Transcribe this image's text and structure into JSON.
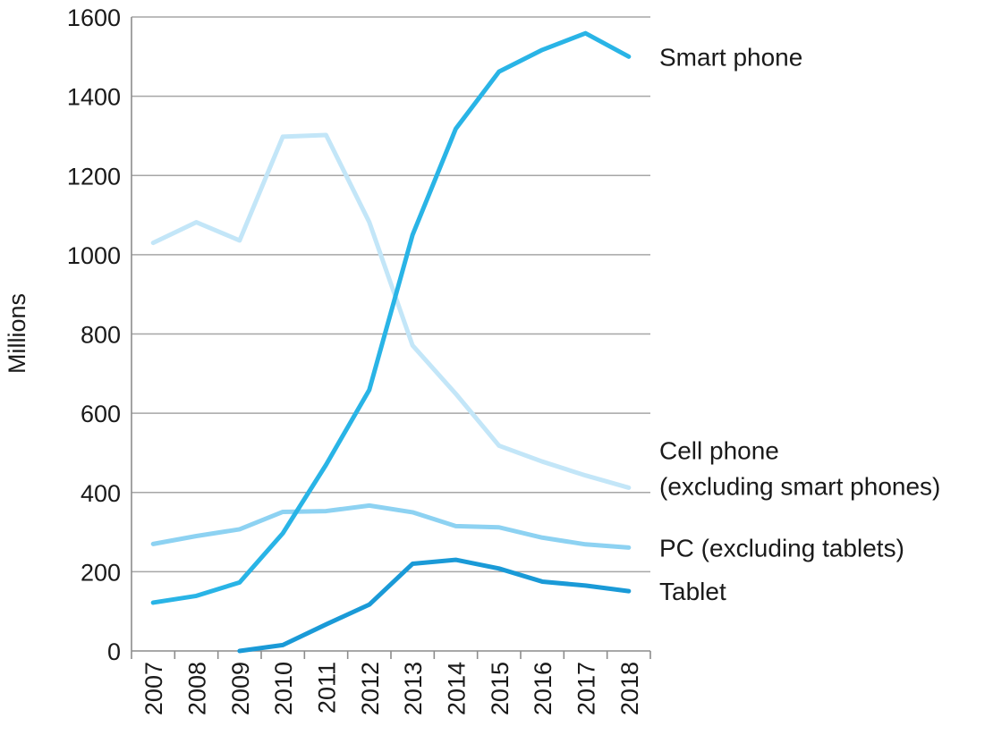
{
  "chart_data": {
    "type": "line",
    "title": "",
    "xlabel": "",
    "ylabel": "Millions",
    "x": [
      "2007",
      "2008",
      "2009",
      "2010",
      "2011",
      "2012",
      "2013",
      "2014",
      "2015",
      "2016",
      "2017",
      "2018"
    ],
    "ylim": [
      0,
      1600
    ],
    "yticks": [
      0,
      200,
      400,
      600,
      800,
      1000,
      1200,
      1400,
      1600
    ],
    "grid": true,
    "legend": "inline-right",
    "series": [
      {
        "name": "Smart phone",
        "label_lines": [
          "Smart phone"
        ],
        "color": "#29b4e6",
        "values": [
          122,
          139,
          173,
          297,
          470,
          659,
          1050,
          1318,
          1462,
          1517,
          1559,
          1500
        ]
      },
      {
        "name": "Cell phone (excluding smart phones)",
        "label_lines": [
          "Cell phone",
          "(excluding smart phones)"
        ],
        "color": "#c3e6f8",
        "values": [
          1030,
          1082,
          1036,
          1298,
          1302,
          1082,
          771,
          649,
          518,
          478,
          443,
          412
        ]
      },
      {
        "name": "PC (excluding tablets)",
        "label_lines": [
          "PC (excluding tablets)"
        ],
        "color": "#8dd2f2",
        "values": [
          270,
          290,
          307,
          351,
          353,
          367,
          350,
          315,
          312,
          286,
          269,
          261
        ]
      },
      {
        "name": "Tablet",
        "label_lines": [
          "Tablet"
        ],
        "color": "#1a9ad7",
        "values": [
          null,
          null,
          0,
          15,
          67,
          117,
          220,
          230,
          208,
          175,
          165,
          151
        ]
      }
    ]
  }
}
